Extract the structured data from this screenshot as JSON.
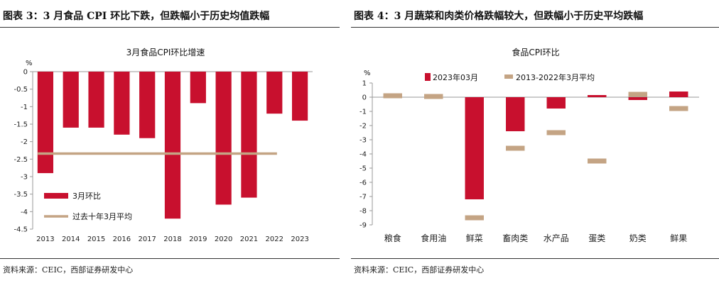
{
  "left": {
    "figure_title": "图表 3：3 月食品 CPI 环比下跌，但跌幅小于历史均值跌幅",
    "source": "资料来源：CEIC，西部证券研发中心"
  },
  "right": {
    "figure_title": "图表 4：3 月蔬菜和肉类价格跌幅较大，但跌幅小于历史平均跌幅",
    "source": "资料来源：CEIC，西部证券研发中心"
  },
  "colors": {
    "bar": "#c8102e",
    "avg": "#c4a484",
    "axis": "#999999",
    "rule": "#333333"
  },
  "chart_data": [
    {
      "type": "bar",
      "title": "3月食品CPI环比增速",
      "ylabel": "%",
      "categories": [
        "2013",
        "2014",
        "2015",
        "2016",
        "2017",
        "2018",
        "2019",
        "2020",
        "2021",
        "2022",
        "2023"
      ],
      "series": [
        {
          "name": "3月环比",
          "type": "bar",
          "values": [
            -2.9,
            -1.6,
            -1.6,
            -1.8,
            -1.9,
            -4.2,
            -0.9,
            -3.8,
            -3.6,
            -1.2,
            -1.4
          ]
        },
        {
          "name": "过去十年3月平均",
          "type": "line",
          "value": -2.34,
          "span": [
            "2013",
            "2022"
          ]
        }
      ],
      "ylim": [
        -4.5,
        0
      ],
      "yticks": [
        "0",
        "-0.5",
        "-1",
        "-1.5",
        "-2",
        "-2.5",
        "-3",
        "-3.5",
        "-4",
        "-4.5"
      ],
      "legend": "bottom-left"
    },
    {
      "type": "bar",
      "title": "食品CPI环比",
      "ylabel": "%",
      "categories": [
        "粮食",
        "食用油",
        "鲜菜",
        "畜肉类",
        "水产品",
        "蛋类",
        "奶类",
        "鲜果"
      ],
      "series": [
        {
          "name": "2023年03月",
          "type": "bar",
          "values": [
            0.1,
            0.0,
            -7.2,
            -2.4,
            -0.8,
            0.15,
            -0.2,
            0.4
          ]
        },
        {
          "name": "2013-2022年3月平均",
          "type": "marker",
          "values": [
            0.1,
            0.05,
            -8.5,
            -3.6,
            -2.5,
            -4.5,
            0.2,
            -0.8
          ]
        }
      ],
      "ylim": [
        -9,
        1
      ],
      "yticks": [
        "1",
        "0",
        "-1",
        "-2",
        "-3",
        "-4",
        "-5",
        "-6",
        "-7",
        "-8",
        "-9"
      ],
      "legend": "top"
    }
  ]
}
